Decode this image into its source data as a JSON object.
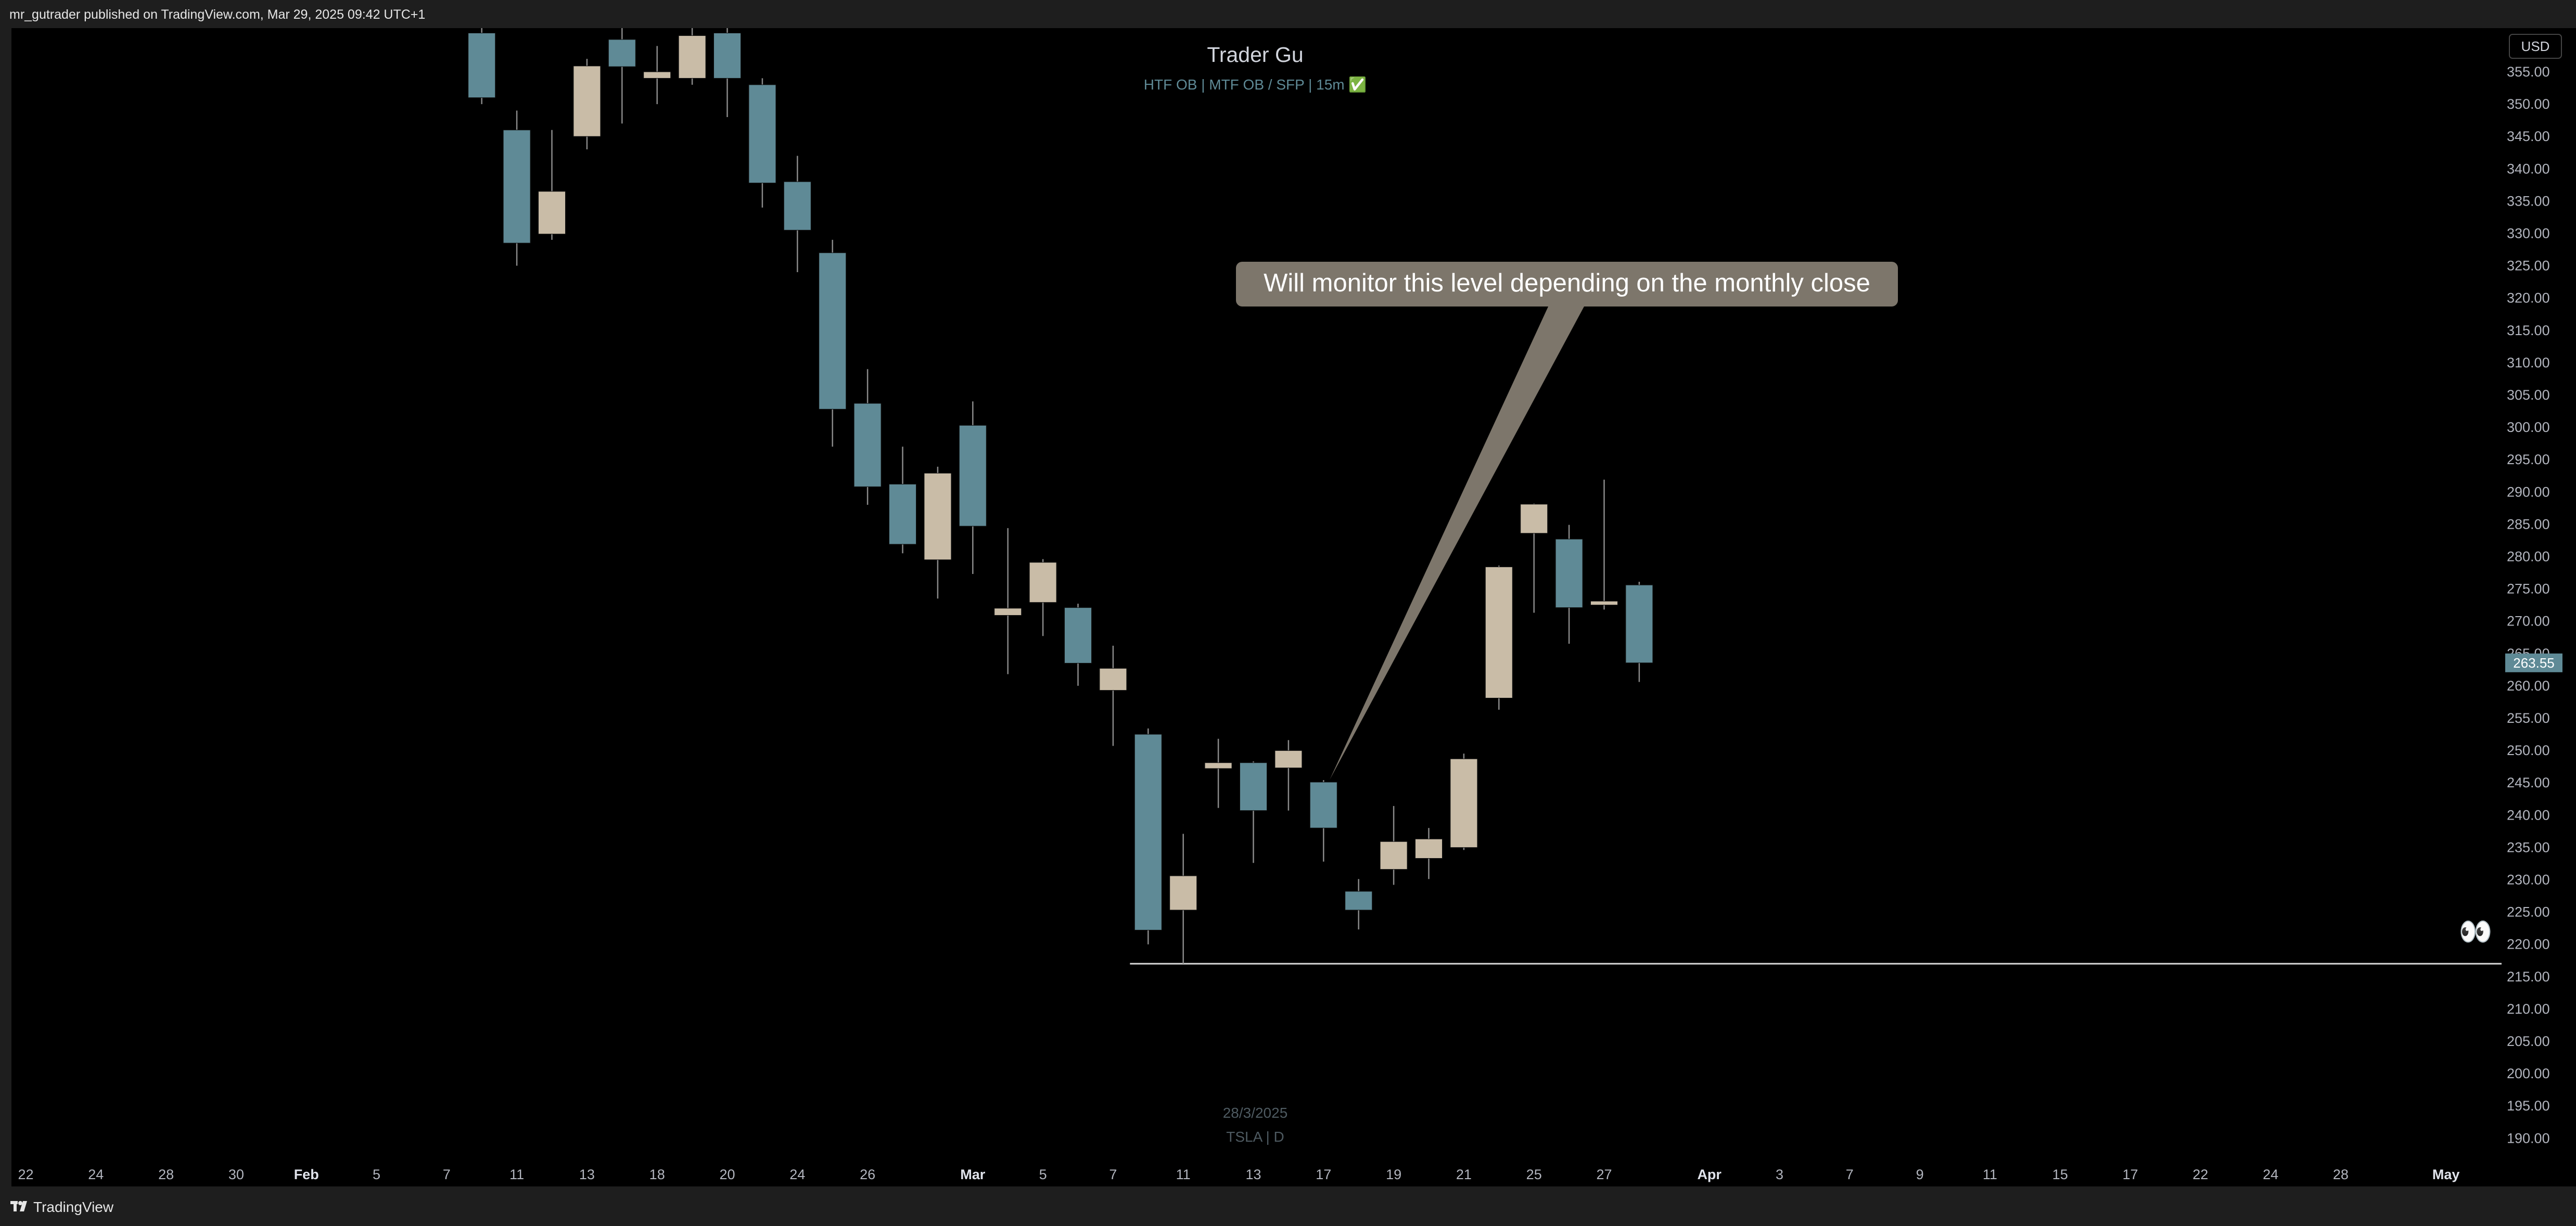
{
  "header": {
    "credit": "mr_gutrader published on TradingView.com, Mar 29, 2025 09:42 UTC+1"
  },
  "footer": {
    "brand": "TradingView"
  },
  "chart_title": "Trader Gu",
  "chart_subtitle": "HTF OB  |  MTF OB / SFP  |  15m ✅",
  "currency": "USD",
  "watermark": {
    "date": "28/3/2025",
    "symbol": "TSLA | D"
  },
  "annotation": {
    "text": "Will monitor this level depending on the monthly close"
  },
  "eyes_emoji": "👀",
  "colors": {
    "background": "#000000",
    "frame": "#1e1e1e",
    "bull": "#c9bca7",
    "bear": "#5f8a96",
    "wick": "#8a8a8a",
    "callout": "#7d766b",
    "price_tag": "#5f8a96",
    "level_line": "#d9d9d9"
  },
  "chart_data": {
    "type": "candlestick",
    "symbol": "TSLA",
    "timeframe": "D",
    "title": "Trader Gu",
    "current_price": 263.55,
    "current_price_label": "263.55",
    "ylim": [
      186,
      360
    ],
    "yticks": [
      "355.00",
      "350.00",
      "345.00",
      "340.00",
      "335.00",
      "330.00",
      "325.00",
      "320.00",
      "315.00",
      "310.00",
      "305.00",
      "300.00",
      "295.00",
      "290.00",
      "285.00",
      "280.00",
      "275.00",
      "270.00",
      "265.00",
      "260.00",
      "255.00",
      "250.00",
      "245.00",
      "240.00",
      "235.00",
      "230.00",
      "225.00",
      "220.00",
      "215.00",
      "210.00",
      "205.00",
      "200.00",
      "195.00",
      "190.00"
    ],
    "xticks": [
      {
        "label": "22",
        "date": "2025-01-22",
        "month": false
      },
      {
        "label": "24",
        "date": "2025-01-24",
        "month": false
      },
      {
        "label": "28",
        "date": "2025-01-28",
        "month": false
      },
      {
        "label": "30",
        "date": "2025-01-30",
        "month": false
      },
      {
        "label": "Feb",
        "date": "2025-02-03",
        "month": true
      },
      {
        "label": "5",
        "date": "2025-02-05",
        "month": false
      },
      {
        "label": "7",
        "date": "2025-02-07",
        "month": false
      },
      {
        "label": "11",
        "date": "2025-02-11",
        "month": false
      },
      {
        "label": "13",
        "date": "2025-02-13",
        "month": false
      },
      {
        "label": "18",
        "date": "2025-02-18",
        "month": false
      },
      {
        "label": "20",
        "date": "2025-02-20",
        "month": false
      },
      {
        "label": "24",
        "date": "2025-02-24",
        "month": false
      },
      {
        "label": "26",
        "date": "2025-02-26",
        "month": false
      },
      {
        "label": "Mar",
        "date": "2025-03-03",
        "month": true
      },
      {
        "label": "5",
        "date": "2025-03-05",
        "month": false
      },
      {
        "label": "7",
        "date": "2025-03-07",
        "month": false
      },
      {
        "label": "11",
        "date": "2025-03-11",
        "month": false
      },
      {
        "label": "13",
        "date": "2025-03-13",
        "month": false
      },
      {
        "label": "17",
        "date": "2025-03-17",
        "month": false
      },
      {
        "label": "19",
        "date": "2025-03-19",
        "month": false
      },
      {
        "label": "21",
        "date": "2025-03-21",
        "month": false
      },
      {
        "label": "25",
        "date": "2025-03-25",
        "month": false
      },
      {
        "label": "27",
        "date": "2025-03-27",
        "month": false
      },
      {
        "label": "Apr",
        "date": "2025-04-01",
        "month": true
      },
      {
        "label": "3",
        "date": "2025-04-03",
        "month": false
      },
      {
        "label": "7",
        "date": "2025-04-07",
        "month": false
      },
      {
        "label": "9",
        "date": "2025-04-09",
        "month": false
      },
      {
        "label": "11",
        "date": "2025-04-11",
        "month": false
      },
      {
        "label": "15",
        "date": "2025-04-15",
        "month": false
      },
      {
        "label": "17",
        "date": "2025-04-17",
        "month": false
      },
      {
        "label": "22",
        "date": "2025-04-22",
        "month": false
      },
      {
        "label": "24",
        "date": "2025-04-24",
        "month": false
      },
      {
        "label": "28",
        "date": "2025-04-28",
        "month": false
      },
      {
        "label": "May",
        "date": "2025-05-01",
        "month": true
      }
    ],
    "candles": [
      {
        "date": "2025-02-10",
        "open": 361.0,
        "high": 366.0,
        "low": 350.0,
        "close": 351.0
      },
      {
        "date": "2025-02-11",
        "open": 346.0,
        "high": 349.0,
        "low": 325.0,
        "close": 328.5
      },
      {
        "date": "2025-02-12",
        "open": 329.9,
        "high": 346.0,
        "low": 329.0,
        "close": 336.5
      },
      {
        "date": "2025-02-13",
        "open": 345.0,
        "high": 357.0,
        "low": 343.0,
        "close": 355.9
      },
      {
        "date": "2025-02-14",
        "open": 360.0,
        "high": 363.0,
        "low": 347.0,
        "close": 355.8
      },
      {
        "date": "2025-02-18",
        "open": 354.0,
        "high": 359.0,
        "low": 350.0,
        "close": 355.0
      },
      {
        "date": "2025-02-19",
        "open": 354.0,
        "high": 367.0,
        "low": 353.0,
        "close": 360.6
      },
      {
        "date": "2025-02-20",
        "open": 361.0,
        "high": 362.0,
        "low": 348.0,
        "close": 354.0
      },
      {
        "date": "2025-02-21",
        "open": 353.0,
        "high": 354.0,
        "low": 334.0,
        "close": 337.8
      },
      {
        "date": "2025-02-24",
        "open": 338.0,
        "high": 342.0,
        "low": 324.0,
        "close": 330.5
      },
      {
        "date": "2025-02-25",
        "open": 327.0,
        "high": 329.0,
        "low": 297.0,
        "close": 302.8
      },
      {
        "date": "2025-02-26",
        "open": 303.7,
        "high": 309.0,
        "low": 288.0,
        "close": 290.8
      },
      {
        "date": "2025-02-27",
        "open": 291.2,
        "high": 297.0,
        "low": 280.5,
        "close": 281.9
      },
      {
        "date": "2025-02-28",
        "open": 279.5,
        "high": 293.9,
        "low": 273.5,
        "close": 292.9
      },
      {
        "date": "2025-03-03",
        "open": 300.3,
        "high": 304.0,
        "low": 277.3,
        "close": 284.7
      },
      {
        "date": "2025-03-04",
        "open": 270.9,
        "high": 284.4,
        "low": 261.8,
        "close": 272.0
      },
      {
        "date": "2025-03-05",
        "open": 272.9,
        "high": 279.6,
        "low": 267.7,
        "close": 279.1
      },
      {
        "date": "2025-03-06",
        "open": 272.1,
        "high": 272.7,
        "low": 260.0,
        "close": 263.5
      },
      {
        "date": "2025-03-07",
        "open": 259.3,
        "high": 266.2,
        "low": 250.7,
        "close": 262.7
      },
      {
        "date": "2025-03-10",
        "open": 252.5,
        "high": 253.4,
        "low": 220.0,
        "close": 222.2
      },
      {
        "date": "2025-03-11",
        "open": 225.3,
        "high": 237.1,
        "low": 217.0,
        "close": 230.6
      },
      {
        "date": "2025-03-12",
        "open": 247.2,
        "high": 251.8,
        "low": 241.1,
        "close": 248.1
      },
      {
        "date": "2025-03-13",
        "open": 248.1,
        "high": 248.3,
        "low": 232.6,
        "close": 240.7
      },
      {
        "date": "2025-03-14",
        "open": 247.3,
        "high": 251.6,
        "low": 240.7,
        "close": 249.98
      },
      {
        "date": "2025-03-17",
        "open": 245.1,
        "high": 245.4,
        "low": 232.8,
        "close": 238.0
      },
      {
        "date": "2025-03-18",
        "open": 228.2,
        "high": 230.1,
        "low": 222.3,
        "close": 225.3
      },
      {
        "date": "2025-03-19",
        "open": 231.6,
        "high": 241.4,
        "low": 229.2,
        "close": 235.9
      },
      {
        "date": "2025-03-20",
        "open": 233.3,
        "high": 238.0,
        "low": 230.1,
        "close": 236.3
      },
      {
        "date": "2025-03-21",
        "open": 234.98,
        "high": 249.5,
        "low": 234.6,
        "close": 248.7
      },
      {
        "date": "2025-03-24",
        "open": 258.1,
        "high": 278.6,
        "low": 256.3,
        "close": 278.4
      },
      {
        "date": "2025-03-25",
        "open": 283.6,
        "high": 288.2,
        "low": 271.3,
        "close": 288.1
      },
      {
        "date": "2025-03-26",
        "open": 282.7,
        "high": 284.9,
        "low": 266.5,
        "close": 272.1
      },
      {
        "date": "2025-03-27",
        "open": 272.5,
        "high": 291.9,
        "low": 271.8,
        "close": 273.1
      },
      {
        "date": "2025-03-28",
        "open": 275.6,
        "high": 276.1,
        "low": 260.6,
        "close": 263.55
      }
    ],
    "horizontal_level": {
      "price": 217.0,
      "from_date": "2025-03-10"
    },
    "annotation_target": {
      "date": "2025-03-17",
      "price": 245.5
    }
  }
}
